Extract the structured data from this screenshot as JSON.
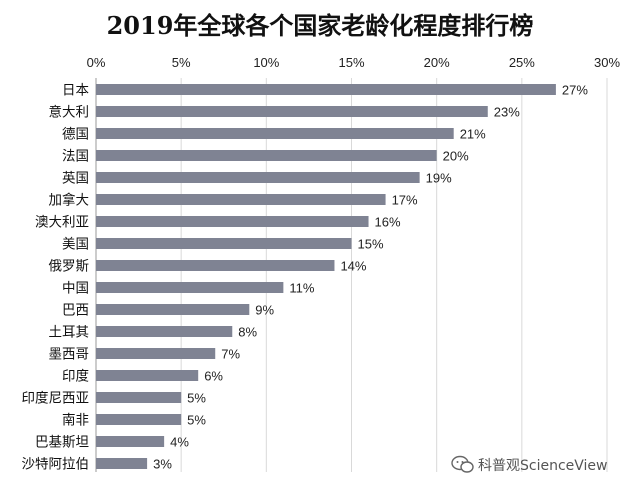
{
  "chart_data": {
    "type": "bar",
    "orientation": "horizontal",
    "title": "2019年全球各个国家老龄化程度排行榜",
    "categories": [
      "日本",
      "意大利",
      "德国",
      "法国",
      "英国",
      "加拿大",
      "澳大利亚",
      "美国",
      "俄罗斯",
      "中国",
      "巴西",
      "土耳其",
      "墨西哥",
      "印度",
      "印度尼西亚",
      "南非",
      "巴基斯坦",
      "沙特阿拉伯"
    ],
    "values": [
      27,
      23,
      21,
      20,
      19,
      17,
      16,
      15,
      14,
      11,
      9,
      8,
      7,
      6,
      5,
      5,
      4,
      3
    ],
    "value_labels": [
      "27%",
      "23%",
      "21%",
      "20%",
      "19%",
      "17%",
      "16%",
      "15%",
      "14%",
      "11%",
      "9%",
      "8%",
      "7%",
      "6%",
      "5%",
      "5%",
      "4%",
      "3%"
    ],
    "xlim": [
      0,
      30
    ],
    "xticks": [
      0,
      5,
      10,
      15,
      20,
      25,
      30
    ],
    "xtick_labels": [
      "0%",
      "5%",
      "10%",
      "15%",
      "20%",
      "25%",
      "30%"
    ],
    "x_axis_position": "top",
    "grid": true,
    "bar_color": "#7f8393"
  },
  "watermark": {
    "text": "科普观ScienceView",
    "icon": "wechat-icon"
  }
}
